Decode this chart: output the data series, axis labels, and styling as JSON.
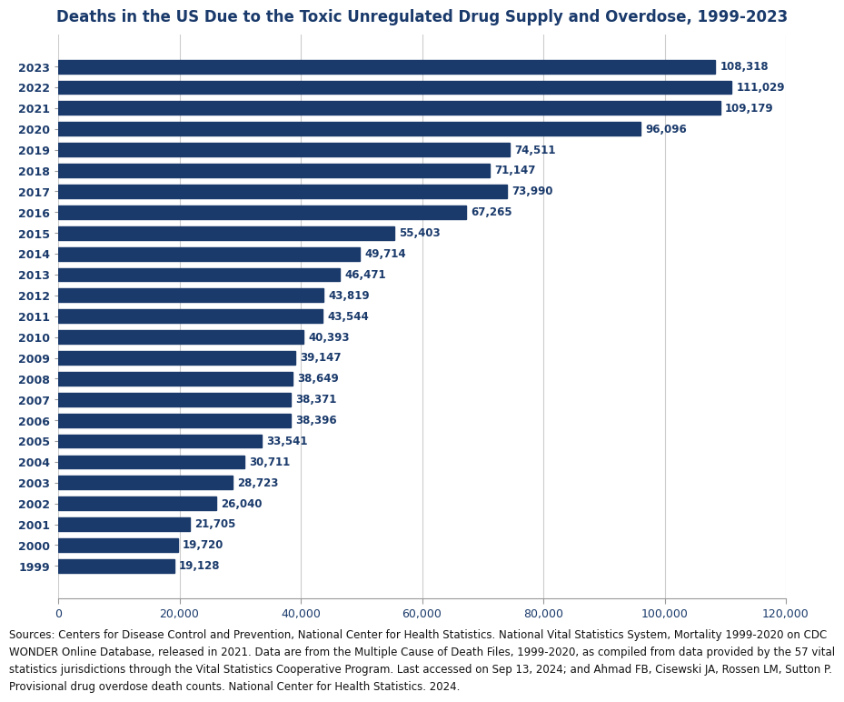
{
  "title": "Deaths in the US Due to the Toxic Unregulated Drug Supply and Overdose, 1999-2023",
  "years": [
    2023,
    2022,
    2021,
    2020,
    2019,
    2018,
    2017,
    2016,
    2015,
    2014,
    2013,
    2012,
    2011,
    2010,
    2009,
    2008,
    2007,
    2006,
    2005,
    2004,
    2003,
    2002,
    2001,
    2000,
    1999
  ],
  "values": [
    108318,
    111029,
    109179,
    96096,
    74511,
    71147,
    73990,
    67265,
    55403,
    49714,
    46471,
    43819,
    43544,
    40393,
    39147,
    38649,
    38371,
    38396,
    33541,
    30711,
    28723,
    26040,
    21705,
    19720,
    19128
  ],
  "bar_color": "#1a3a6b",
  "title_color": "#1a3a6b",
  "label_color": "#1a3a6b",
  "tick_color": "#1a3a6b",
  "background_color": "#ffffff",
  "grid_color": "#cccccc",
  "xlim": [
    0,
    120000
  ],
  "xticks": [
    0,
    20000,
    40000,
    60000,
    80000,
    100000,
    120000
  ],
  "xtick_labels": [
    "0",
    "20,000",
    "40,000",
    "60,000",
    "80,000",
    "100,000",
    "120,000"
  ],
  "source_text": "Sources: Centers for Disease Control and Prevention, National Center for Health Statistics. National Vital Statistics System, Mortality 1999-2020 on CDC\nWONDER Online Database, released in 2021. Data are from the Multiple Cause of Death Files, 1999-2020, as compiled from data provided by the 57 vital\nstatistics jurisdictions through the Vital Statistics Cooperative Program. Last accessed on Sep 13, 2024; and Ahmad FB, Cisewski JA, Rossen LM, Sutton P.\nProvisional drug overdose death counts. National Center for Health Statistics. 2024.",
  "title_fontsize": 12,
  "label_fontsize": 8.5,
  "tick_fontsize": 9,
  "source_fontsize": 8.5,
  "bar_height": 0.65
}
